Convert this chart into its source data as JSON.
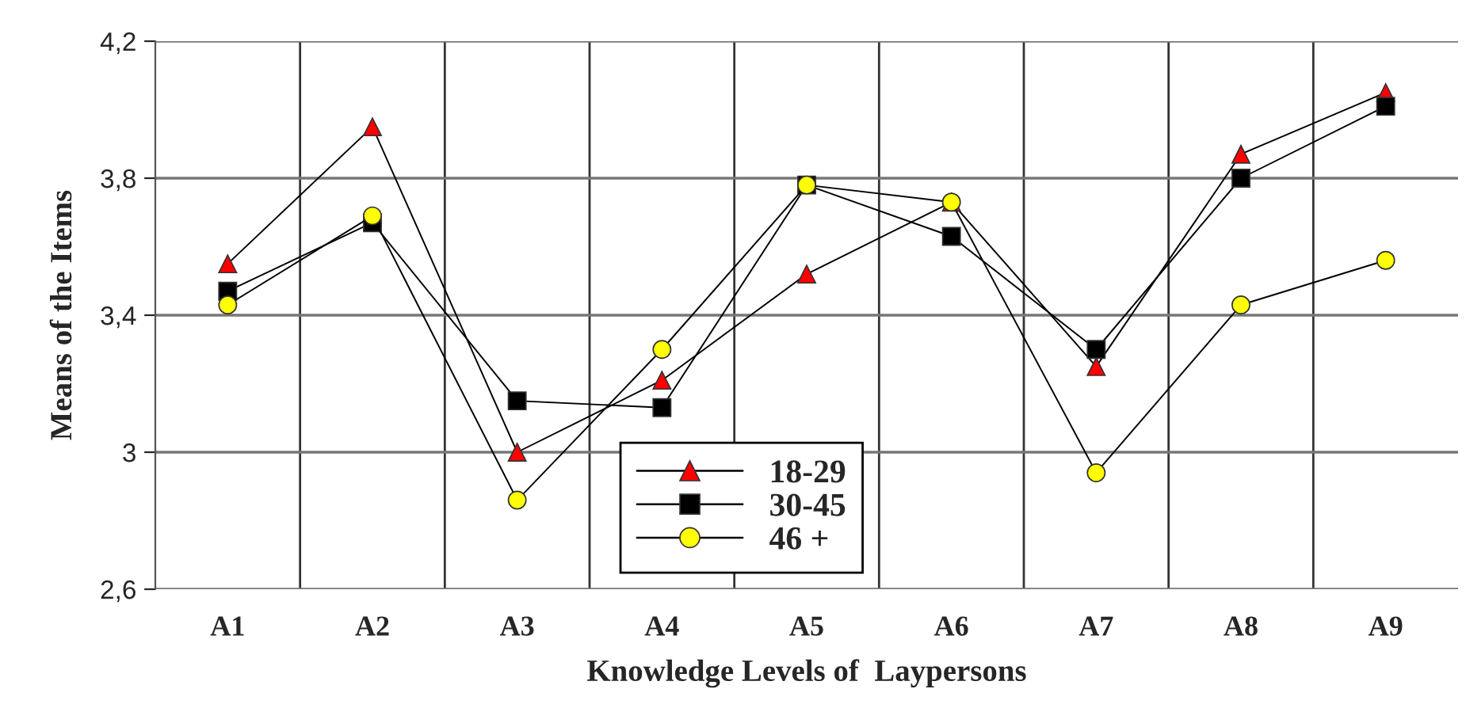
{
  "chart_data": {
    "type": "line",
    "xlabel": "Knowledge Levels of  Laypersons",
    "ylabel": "Means of the Items",
    "categories": [
      "A1",
      "A2",
      "A3",
      "A4",
      "A5",
      "A6",
      "A7",
      "A8",
      "A9"
    ],
    "series": [
      {
        "name": "18-29",
        "color": "#ff0000",
        "marker": "triangle",
        "values": [
          3.55,
          3.95,
          3.0,
          3.21,
          3.52,
          3.73,
          3.25,
          3.87,
          4.05
        ]
      },
      {
        "name": "30-45",
        "color": "#000000",
        "marker": "square",
        "values": [
          3.47,
          3.67,
          3.15,
          3.13,
          3.78,
          3.63,
          3.3,
          3.8,
          4.01
        ]
      },
      {
        "name": "46 +",
        "color": "#ffff00",
        "marker": "circle",
        "values": [
          3.43,
          3.69,
          2.86,
          3.3,
          3.78,
          3.73,
          2.94,
          3.43,
          3.56
        ]
      }
    ],
    "ylim": [
      2.6,
      4.2
    ],
    "yticks": [
      {
        "value": 2.6,
        "label": "2,6"
      },
      {
        "value": 3.0,
        "label": "3"
      },
      {
        "value": 3.4,
        "label": "3,4"
      },
      {
        "value": 3.8,
        "label": "3,8"
      },
      {
        "value": 4.2,
        "label": "4,2"
      }
    ],
    "grid": true,
    "legend": "bottom",
    "line_style": "solid"
  }
}
